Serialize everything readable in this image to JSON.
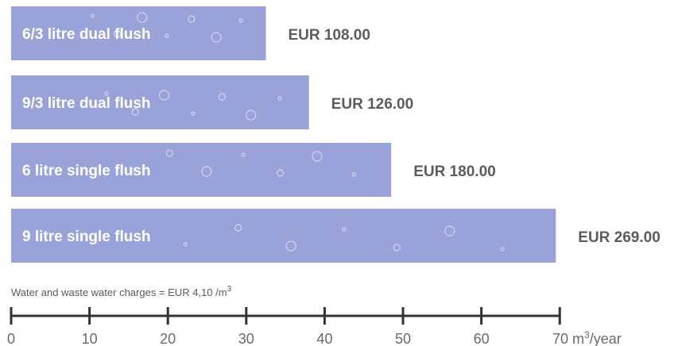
{
  "chart_data": {
    "type": "bar",
    "orientation": "horizontal",
    "categories": [
      "6/3 litre dual flush",
      "9/3 litre dual flush",
      "6 litre single flush",
      "9 litre single flush"
    ],
    "values": [
      32.5,
      38,
      48.5,
      69.5
    ],
    "data_labels": [
      "EUR 108.00",
      "EUR 126.00",
      "EUR 180.00",
      "EUR 269.00"
    ],
    "note": "Water and waste water charges = EUR 4,10 /m",
    "note_superscript": "3",
    "x_ticks": [
      "0",
      "10",
      "20",
      "30",
      "40",
      "50",
      "60",
      "70"
    ],
    "x_unit": "m",
    "x_unit_superscript": "3",
    "x_unit_suffix": "/year",
    "xlim": [
      0,
      70
    ],
    "grid": false,
    "colors": {
      "bar": "#9aa3d9",
      "bubble": "#ffffff",
      "axis": "#333333",
      "value_text": "#5c5c5c",
      "tick_text": "#6a6a6a"
    }
  }
}
